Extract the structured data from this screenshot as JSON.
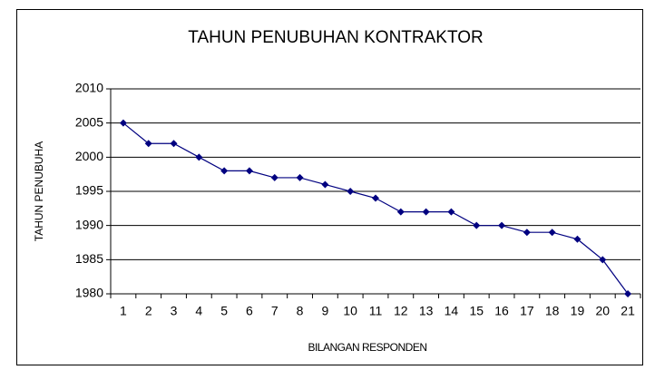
{
  "chart_data": {
    "type": "line",
    "title": "TAHUN PENUBUHAN KONTRAKTOR",
    "x_label": "BILANGAN RESPONDEN",
    "y_label": "TAHUN PENUBUHA",
    "categories": [
      "1",
      "2",
      "3",
      "4",
      "5",
      "6",
      "7",
      "8",
      "9",
      "10",
      "11",
      "12",
      "13",
      "14",
      "15",
      "16",
      "17",
      "18",
      "19",
      "20",
      "21"
    ],
    "series": [
      {
        "name": "TAHUN PENUBUHAN",
        "color": "#000080",
        "values": [
          2005,
          2002,
          2002,
          2000,
          1998,
          1998,
          1997,
          1997,
          1996,
          1995,
          1994,
          1992,
          1992,
          1992,
          1990,
          1990,
          1989,
          1989,
          1988,
          1985,
          1980
        ]
      }
    ],
    "ylim": [
      1980,
      2010
    ],
    "yticks": [
      1980,
      1985,
      1990,
      1995,
      2000,
      2005,
      2010
    ],
    "grid": true
  }
}
